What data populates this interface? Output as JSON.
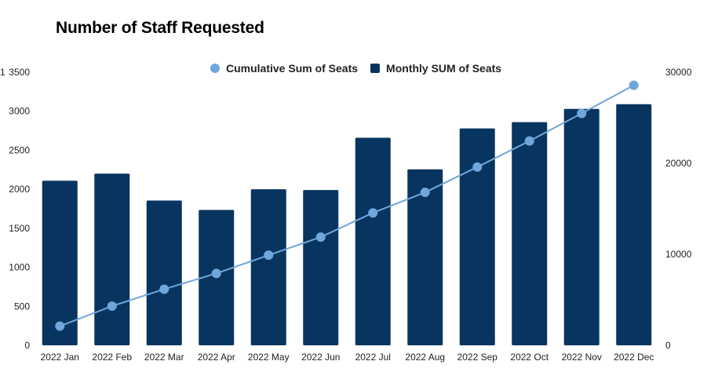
{
  "chart_data": {
    "type": "bar",
    "title": "Number of Staff Requested",
    "categories": [
      "2022 Jan",
      "2022 Feb",
      "2022 Mar",
      "2022 Apr",
      "2022 May",
      "2022 Jun",
      "2022 Jul",
      "2022 Aug",
      "2022 Sep",
      "2022 Oct",
      "2022 Nov",
      "2022 Dec"
    ],
    "series": [
      {
        "name": "Monthly SUM of Seats",
        "type": "bar",
        "axis": "left",
        "color": "#08355f",
        "values": [
          2110,
          2200,
          1855,
          1735,
          2000,
          1990,
          2660,
          2255,
          2780,
          2860,
          3030,
          3090
        ]
      },
      {
        "name": "Cumulative Sum of Seats",
        "type": "line",
        "axis": "right",
        "color": "#6fa6dc",
        "values": [
          2110,
          4310,
          6165,
          7900,
          9900,
          11890,
          14550,
          16805,
          19585,
          22445,
          25475,
          28565
        ]
      }
    ],
    "y_left": {
      "min": 0,
      "max": 3500,
      "ticks": [
        "0",
        "500",
        "1000",
        "1500",
        "2000",
        "2500",
        "3000",
        "3500"
      ]
    },
    "y_right": {
      "min": 0,
      "max": 30000,
      "ticks": [
        "0",
        "10000",
        "20000",
        "30000"
      ]
    },
    "left_axis_cut_label": "1",
    "legend_position": "top-center",
    "grid": false
  }
}
